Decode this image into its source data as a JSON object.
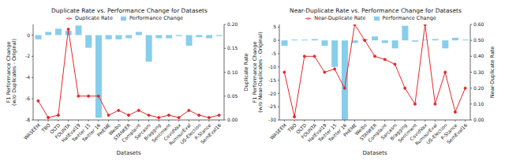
{
  "chart_data": [
    {
      "type": "bar",
      "title": "Duplicate Rate vs. Performance Change for Datasets",
      "x_label": "Datasets",
      "y_label": "F1 Performance Change (w/o Duplicates - Original)",
      "y2_label": "Duplicate Rate",
      "categories": [
        "WASEEM",
        "TBO",
        "OLTD",
        "FOUNTA",
        "HatEval19",
        "Twitter 15",
        "Twitter 16",
        "PHEME",
        "Weibo",
        "STANKER",
        "Complaint",
        "Sarcasm",
        "Bragging",
        "Sentiment",
        "CovidVax",
        "RumourEval",
        "US-Election",
        "P-Stance",
        "SemEval16"
      ],
      "series": [
        {
          "name": "Performance Change",
          "type": "bar",
          "color": "#87ceeb",
          "values": [
            -0.4,
            0.3,
            0.6,
            0.4,
            0.9,
            -1.2,
            -7.8,
            -0.4,
            -0.4,
            -0.3,
            0.3,
            -2.5,
            -0.3,
            -0.3,
            -0.1,
            -1.0,
            -0.2,
            -0.3,
            -0.1
          ]
        },
        {
          "name": "Duplicate Rate",
          "type": "line",
          "axis": "y2",
          "color": "#e8262a",
          "marker": "circle",
          "values": [
            0.04,
            0.005,
            0.01,
            0.19,
            0.05,
            0.05,
            0.05,
            0.01,
            0.02,
            0.01,
            0.02,
            0.01,
            0.005,
            0.01,
            0.005,
            0.02,
            0.01,
            0.005,
            0.01
          ]
        }
      ],
      "ylim": [
        -8,
        1
      ],
      "yticks": [
        -8,
        -6,
        -4,
        -2,
        0
      ],
      "y2lim": [
        0,
        0.2
      ],
      "y2ticks": [
        {
          "value": 0,
          "label": "0.00"
        },
        0.05,
        {
          "value": 0.1,
          "label": "0.10"
        },
        0.15,
        {
          "value": 0.2,
          "label": "0.20"
        }
      ],
      "grid": false,
      "legend": "top"
    },
    {
      "type": "bar",
      "title": "Near-Duplicate Rate vs. Performance Change for Datasets",
      "x_label": "Datasets",
      "y_label": "F1 Performance Change (w/o Near-Duplicates - Original)",
      "y2_label": "Near-Duplicate Rate",
      "categories": [
        "WASEEM",
        "TBO",
        "OLTD",
        "FOUNTA",
        "HatEval19",
        "Twitter 15",
        "Twitter 16",
        "PHEME",
        "Weibo",
        "STANKER",
        "Complaint",
        "Sarcasm",
        "Bragging",
        "Sentiment",
        "CovidVax",
        "RumourEval",
        "US-Election",
        "P-Stance",
        "SemEval16"
      ],
      "series": [
        {
          "name": "Performance Change",
          "type": "bar",
          "color": "#87ceeb",
          "values": [
            -2,
            0.3,
            0.3,
            0.5,
            -2,
            -10,
            -30,
            -1,
            0.5,
            1.5,
            -1,
            -3,
            5.5,
            -0.5,
            0.3,
            0.5,
            -3,
            1,
            0.3
          ]
        },
        {
          "name": "Near-Duplicate Rate",
          "type": "line",
          "axis": "y2",
          "color": "#e8262a",
          "marker": "circle",
          "values": [
            0.3,
            0.02,
            0.4,
            0.4,
            0.3,
            0.32,
            0.2,
            0.6,
            0.5,
            0.4,
            0.38,
            0.35,
            0.2,
            0.1,
            0.6,
            0.1,
            0.3,
            0.05,
            0.2
          ]
        }
      ],
      "ylim": [
        -30,
        6
      ],
      "yticks": [
        -30,
        -25,
        -20,
        -15,
        -10,
        -5,
        0,
        5
      ],
      "y2lim": [
        0,
        0.6
      ],
      "y2ticks": [
        {
          "value": 0,
          "label": "0.00"
        },
        {
          "value": 0.1,
          "label": "0.10"
        },
        {
          "value": 0.2,
          "label": "0.20"
        },
        {
          "value": 0.3,
          "label": "0.30"
        },
        {
          "value": 0.4,
          "label": "0.40"
        },
        {
          "value": 0.5,
          "label": "0.50"
        },
        {
          "value": 0.6,
          "label": "0.60"
        }
      ],
      "grid": false,
      "legend": "top"
    }
  ]
}
